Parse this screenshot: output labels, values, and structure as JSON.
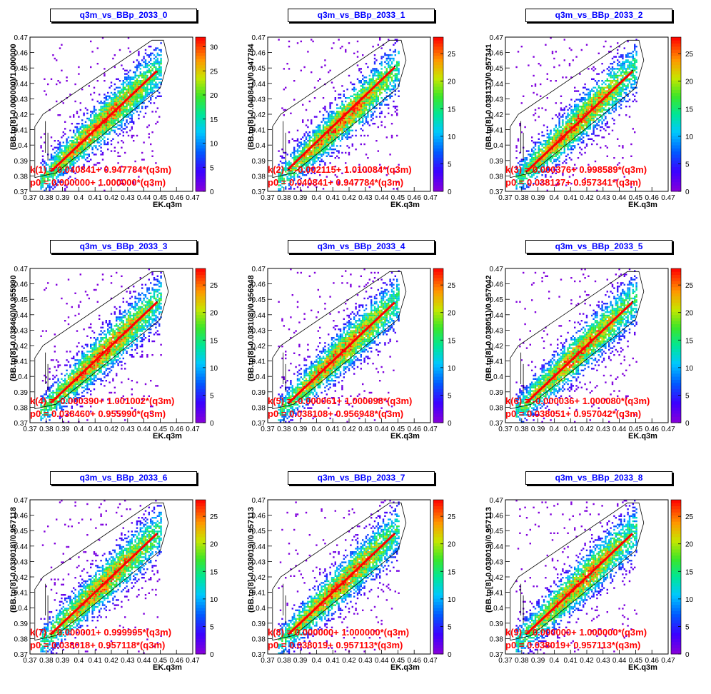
{
  "page": {
    "background": "#ffffff"
  },
  "chart_data": [
    {
      "type": "heatmap",
      "title": "q3m_vs_BBp_2033_0",
      "xlabel": "EK.q3m",
      "ylabel": "(BB.tp[8]-0.000000)/1.000000",
      "xlim": [
        0.37,
        0.47
      ],
      "ylim": [
        0.37,
        0.47
      ],
      "x_ticks": [
        "0.37",
        "0.38",
        "0.39",
        "0.4",
        "0.41",
        "0.42",
        "0.43",
        "0.44",
        "0.45",
        "0.46",
        "0.47"
      ],
      "y_ticks": [
        "0.37",
        "0.38",
        "0.39",
        "0.4",
        "0.41",
        "0.42",
        "0.43",
        "0.44",
        "0.45",
        "0.46",
        "0.47"
      ],
      "z_ticks": [
        "0",
        "5",
        "10",
        "15",
        "20",
        "25",
        "30"
      ],
      "zmax": 32,
      "fit_text": [
        "k(1) = 0.040841+ 0.947784*(q3m)",
        "p0 = 0.000000+ 1.000000*(q3m)"
      ],
      "fit_line": {
        "intercept": 0.0,
        "slope": 1.0,
        "x_range": [
          0.383,
          0.448
        ]
      }
    },
    {
      "type": "heatmap",
      "title": "q3m_vs_BBp_2033_1",
      "xlabel": "EK.q3m",
      "ylabel": "(BB.tp[8]-0.040841)/0.947784",
      "xlim": [
        0.37,
        0.47
      ],
      "ylim": [
        0.37,
        0.47
      ],
      "x_ticks": [
        "0.37",
        "0.38",
        "0.39",
        "0.4",
        "0.41",
        "0.42",
        "0.43",
        "0.44",
        "0.45",
        "0.46",
        "0.47"
      ],
      "y_ticks": [
        "0.37",
        "0.38",
        "0.39",
        "0.4",
        "0.41",
        "0.42",
        "0.43",
        "0.44",
        "0.45",
        "0.46",
        "0.47"
      ],
      "z_ticks": [
        "0",
        "5",
        "10",
        "15",
        "20",
        "25"
      ],
      "zmax": 28,
      "fit_text": [
        "k(2) = -0.002115+ 1.010084*(q3m)",
        "p0 = 0.040841+ 0.947784*(q3m)"
      ],
      "fit_line": {
        "intercept": -0.002115,
        "slope": 1.010084,
        "x_range": [
          0.383,
          0.448
        ]
      }
    },
    {
      "type": "heatmap",
      "title": "q3m_vs_BBp_2033_2",
      "xlabel": "EK.q3m",
      "ylabel": "(BB.tp[8]-0.038137)/0.957341",
      "xlim": [
        0.37,
        0.47
      ],
      "ylim": [
        0.37,
        0.47
      ],
      "x_ticks": [
        "0.37",
        "0.38",
        "0.39",
        "0.4",
        "0.41",
        "0.42",
        "0.43",
        "0.44",
        "0.45",
        "0.46",
        "0.47"
      ],
      "y_ticks": [
        "0.37",
        "0.38",
        "0.39",
        "0.4",
        "0.41",
        "0.42",
        "0.43",
        "0.44",
        "0.45",
        "0.46",
        "0.47"
      ],
      "z_ticks": [
        "0",
        "5",
        "10",
        "15",
        "20",
        "25"
      ],
      "zmax": 28,
      "fit_text": [
        "k(3) = 0.000376+ 0.998589*(q3m)",
        "p0 = 0.038137+ 0.957341*(q3m)"
      ],
      "fit_line": {
        "intercept": 0.000376,
        "slope": 0.998589,
        "x_range": [
          0.383,
          0.448
        ]
      }
    },
    {
      "type": "heatmap",
      "title": "q3m_vs_BBp_2033_3",
      "xlabel": "EK.q3m",
      "ylabel": "(BB.tp[8]-0.038460)/0.955990",
      "xlim": [
        0.37,
        0.47
      ],
      "ylim": [
        0.37,
        0.47
      ],
      "x_ticks": [
        "0.37",
        "0.38",
        "0.39",
        "0.4",
        "0.41",
        "0.42",
        "0.43",
        "0.44",
        "0.45",
        "0.46",
        "0.47"
      ],
      "y_ticks": [
        "0.37",
        "0.38",
        "0.39",
        "0.4",
        "0.41",
        "0.42",
        "0.43",
        "0.44",
        "0.45",
        "0.46",
        "0.47"
      ],
      "z_ticks": [
        "0",
        "5",
        "10",
        "15",
        "20",
        "25"
      ],
      "zmax": 28,
      "fit_text": [
        "k(4) = -0.000390+ 1.001002*(q3m)",
        "p0 = 0.038460+ 0.955990*(q3m)"
      ],
      "fit_line": {
        "intercept": -0.00039,
        "slope": 1.001002,
        "x_range": [
          0.383,
          0.448
        ]
      }
    },
    {
      "type": "heatmap",
      "title": "q3m_vs_BBp_2033_4",
      "xlabel": "EK.q3m",
      "ylabel": "(BB.tp[8]-0.038108)/0.956948",
      "xlim": [
        0.37,
        0.47
      ],
      "ylim": [
        0.37,
        0.47
      ],
      "x_ticks": [
        "0.37",
        "0.38",
        "0.39",
        "0.4",
        "0.41",
        "0.42",
        "0.43",
        "0.44",
        "0.45",
        "0.46",
        "0.47"
      ],
      "y_ticks": [
        "0.37",
        "0.38",
        "0.39",
        "0.4",
        "0.41",
        "0.42",
        "0.43",
        "0.44",
        "0.45",
        "0.46",
        "0.47"
      ],
      "z_ticks": [
        "0",
        "5",
        "10",
        "15",
        "20",
        "25"
      ],
      "zmax": 28,
      "fit_text": [
        "k(5) = -0.000061+ 1.000098*(q3m)",
        "p0 = 0.038108+ 0.956948*(q3m)"
      ],
      "fit_line": {
        "intercept": -6.1e-05,
        "slope": 1.000098,
        "x_range": [
          0.383,
          0.448
        ]
      }
    },
    {
      "type": "heatmap",
      "title": "q3m_vs_BBp_2033_5",
      "xlabel": "EK.q3m",
      "ylabel": "(BB.tp[8]-0.038051)/0.957042",
      "xlim": [
        0.37,
        0.47
      ],
      "ylim": [
        0.37,
        0.47
      ],
      "x_ticks": [
        "0.37",
        "0.38",
        "0.39",
        "0.4",
        "0.41",
        "0.42",
        "0.43",
        "0.44",
        "0.45",
        "0.46",
        "0.47"
      ],
      "y_ticks": [
        "0.37",
        "0.38",
        "0.39",
        "0.4",
        "0.41",
        "0.42",
        "0.43",
        "0.44",
        "0.45",
        "0.46",
        "0.47"
      ],
      "z_ticks": [
        "0",
        "5",
        "10",
        "15",
        "20",
        "25"
      ],
      "zmax": 28,
      "fit_text": [
        "k(6) = -0.000036+ 1.000080*(q3m)",
        "p0 = 0.038051+ 0.957042*(q3m)"
      ],
      "fit_line": {
        "intercept": -3.6e-05,
        "slope": 1.00008,
        "x_range": [
          0.383,
          0.448
        ]
      }
    },
    {
      "type": "heatmap",
      "title": "q3m_vs_BBp_2033_6",
      "xlabel": "EK.q3m",
      "ylabel": "(BB.tp[8]-0.038018)/0.957118",
      "xlim": [
        0.37,
        0.47
      ],
      "ylim": [
        0.37,
        0.47
      ],
      "x_ticks": [
        "0.37",
        "0.38",
        "0.39",
        "0.4",
        "0.41",
        "0.42",
        "0.43",
        "0.44",
        "0.45",
        "0.46",
        "0.47"
      ],
      "y_ticks": [
        "0.37",
        "0.38",
        "0.39",
        "0.4",
        "0.41",
        "0.42",
        "0.43",
        "0.44",
        "0.45",
        "0.46",
        "0.47"
      ],
      "z_ticks": [
        "0",
        "5",
        "10",
        "15",
        "20",
        "25"
      ],
      "zmax": 28,
      "fit_text": [
        "k(7) = 0.000001+ 0.999995*(q3m)",
        "p0 = 0.038018+ 0.957118*(q3m)"
      ],
      "fit_line": {
        "intercept": 1e-06,
        "slope": 0.999995,
        "x_range": [
          0.383,
          0.448
        ]
      }
    },
    {
      "type": "heatmap",
      "title": "q3m_vs_BBp_2033_7",
      "xlabel": "EK.q3m",
      "ylabel": "(BB.tp[8]-0.038019)/0.957113",
      "xlim": [
        0.37,
        0.47
      ],
      "ylim": [
        0.37,
        0.47
      ],
      "x_ticks": [
        "0.37",
        "0.38",
        "0.39",
        "0.4",
        "0.41",
        "0.42",
        "0.43",
        "0.44",
        "0.45",
        "0.46",
        "0.47"
      ],
      "y_ticks": [
        "0.37",
        "0.38",
        "0.39",
        "0.4",
        "0.41",
        "0.42",
        "0.43",
        "0.44",
        "0.45",
        "0.46",
        "0.47"
      ],
      "z_ticks": [
        "0",
        "5",
        "10",
        "15",
        "20",
        "25"
      ],
      "zmax": 28,
      "fit_text": [
        "k(8) = 0.000000+ 1.000000*(q3m)",
        "p0 = 0.038019+ 0.957113*(q3m)"
      ],
      "fit_line": {
        "intercept": 0.0,
        "slope": 1.0,
        "x_range": [
          0.383,
          0.448
        ]
      }
    },
    {
      "type": "heatmap",
      "title": "q3m_vs_BBp_2033_8",
      "xlabel": "EK.q3m",
      "ylabel": "(BB.tp[8]-0.038019)/0.957113",
      "xlim": [
        0.37,
        0.47
      ],
      "ylim": [
        0.37,
        0.47
      ],
      "x_ticks": [
        "0.37",
        "0.38",
        "0.39",
        "0.4",
        "0.41",
        "0.42",
        "0.43",
        "0.44",
        "0.45",
        "0.46",
        "0.47"
      ],
      "y_ticks": [
        "0.37",
        "0.38",
        "0.39",
        "0.4",
        "0.41",
        "0.42",
        "0.43",
        "0.44",
        "0.45",
        "0.46",
        "0.47"
      ],
      "z_ticks": [
        "0",
        "5",
        "10",
        "15",
        "20",
        "25"
      ],
      "zmax": 28,
      "fit_text": [
        "k(9) = 0.000000+ 1.000000*(q3m)",
        "p0 = 0.038019+ 0.957113*(q3m)"
      ],
      "fit_line": {
        "intercept": 0.0,
        "slope": 1.0,
        "x_range": [
          0.383,
          0.448
        ]
      }
    }
  ]
}
